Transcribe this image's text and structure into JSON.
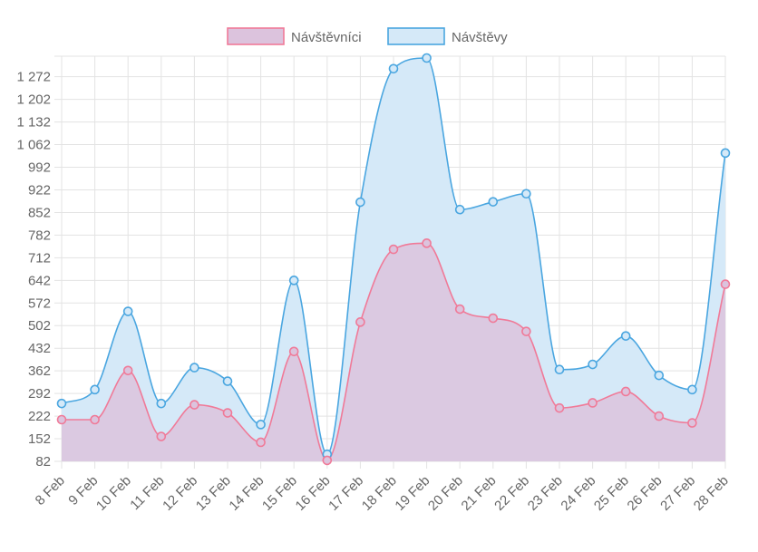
{
  "chart_data": {
    "type": "line",
    "fill": "area",
    "categories": [
      "8 Feb",
      "9 Feb",
      "10 Feb",
      "11 Feb",
      "12 Feb",
      "13 Feb",
      "14 Feb",
      "15 Feb",
      "16 Feb",
      "17 Feb",
      "18 Feb",
      "19 Feb",
      "20 Feb",
      "21 Feb",
      "22 Feb",
      "23 Feb",
      "24 Feb",
      "25 Feb",
      "26 Feb",
      "27 Feb",
      "28 Feb"
    ],
    "yticks": [
      "82",
      "152",
      "222",
      "292",
      "362",
      "432",
      "502",
      "572",
      "642",
      "712",
      "782",
      "852",
      "922",
      "992",
      "1 062",
      "1 132",
      "1 202",
      "1 272"
    ],
    "ylim": [
      82,
      1300
    ],
    "grid": true,
    "legend_position": "top",
    "series": [
      {
        "name": "Návštěvníci",
        "color": "#f07a98",
        "fill": "#dcc3dd",
        "values": [
          211,
          211,
          363,
          159,
          257,
          232,
          141,
          422,
          85,
          513,
          738,
          757,
          553,
          525,
          484,
          247,
          263,
          298,
          222,
          201,
          630
        ]
      },
      {
        "name": "Návštěvy",
        "color": "#4aa6e0",
        "fill": "#d5e9f8",
        "values": [
          261,
          304,
          546,
          261,
          372,
          330,
          196,
          642,
          104,
          884,
          1297,
          1330,
          861,
          885,
          910,
          366,
          382,
          470,
          348,
          304,
          1036
        ]
      }
    ]
  }
}
